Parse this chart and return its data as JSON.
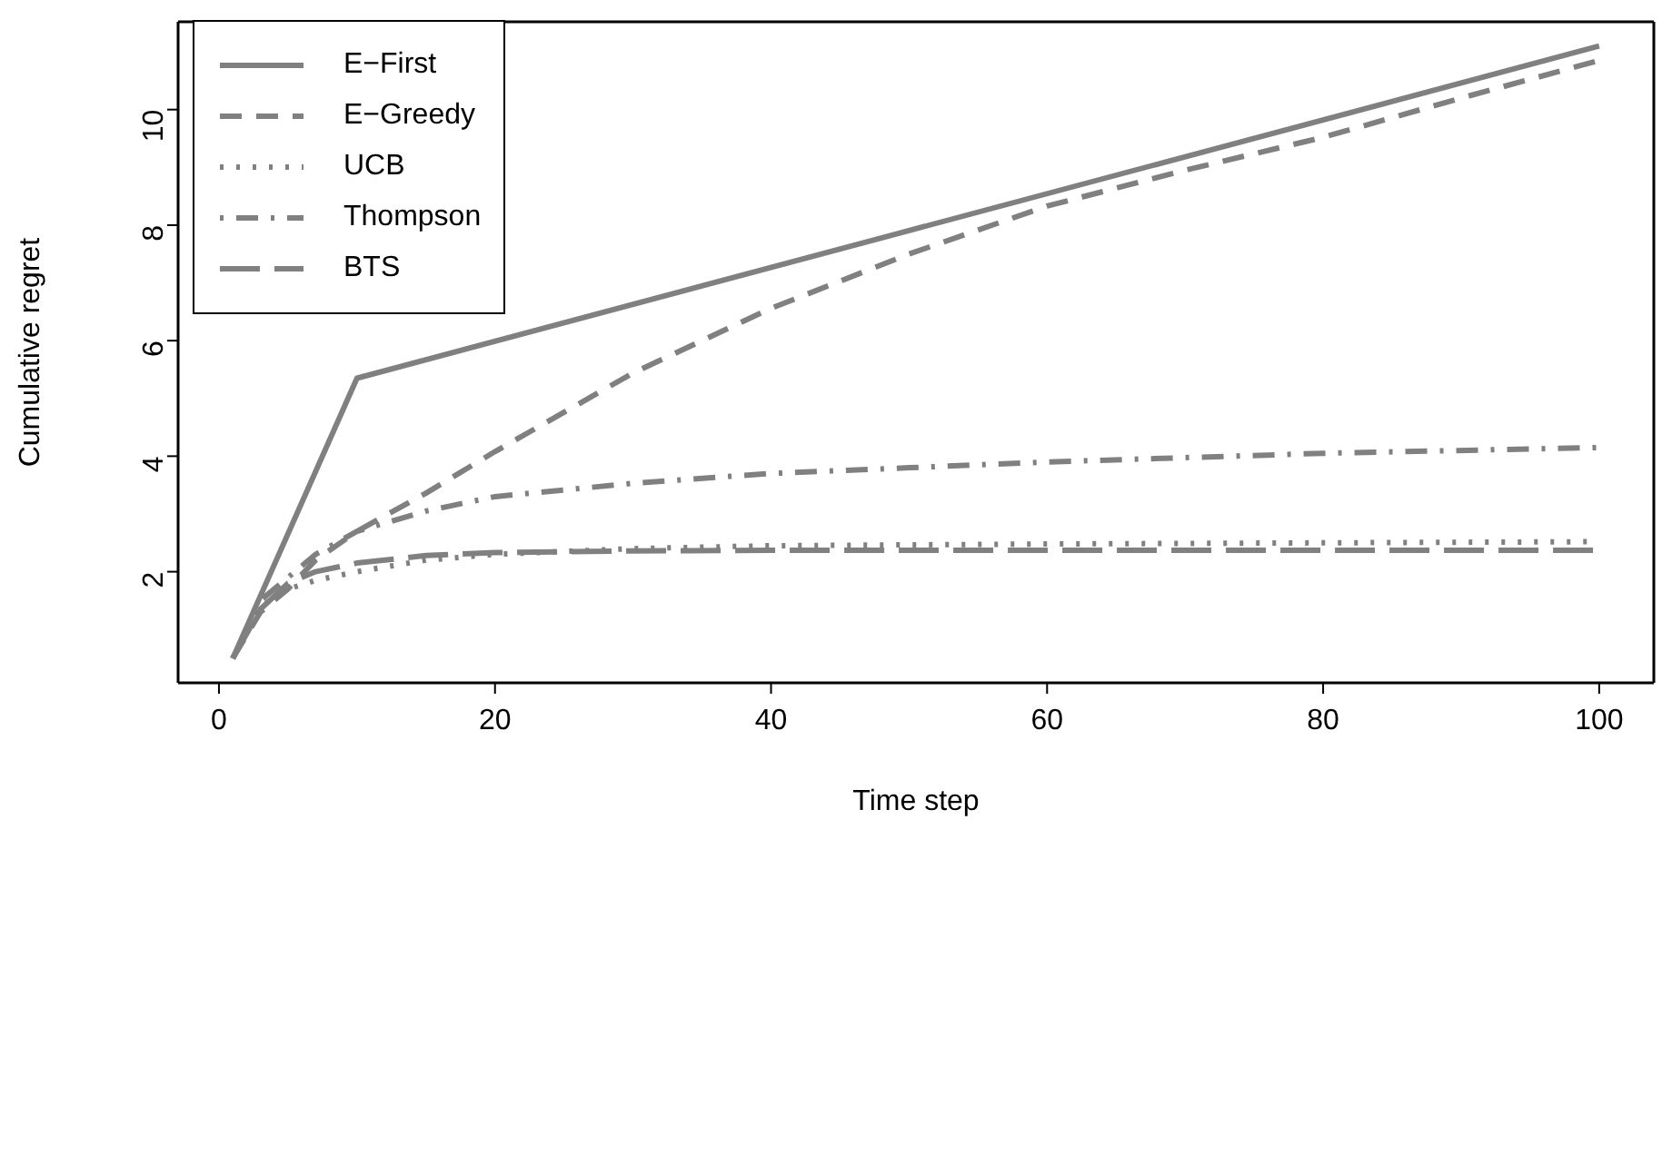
{
  "chart_data": {
    "type": "line",
    "xlabel": "Time step",
    "ylabel": "Cumulative regret",
    "xlim": [
      -2.96,
      103.96
    ],
    "ylim": [
      0.076,
      11.52
    ],
    "xticks": [
      0,
      20,
      40,
      60,
      80,
      100
    ],
    "yticks": [
      2,
      4,
      6,
      8,
      10
    ],
    "legend": "top left",
    "marker": "none",
    "series": [
      {
        "name": "E−First",
        "color": "#808080",
        "line_style": "solid",
        "x": [
          1,
          10,
          100
        ],
        "values": [
          0.5,
          5.35,
          11.1
        ]
      },
      {
        "name": "E−Greedy",
        "color": "#808080",
        "line_style": "dashed",
        "x": [
          1,
          3,
          5,
          7,
          10,
          15,
          20,
          30,
          40,
          50,
          60,
          70,
          80,
          90,
          100
        ],
        "values": [
          0.5,
          1.3,
          1.7,
          2.2,
          2.7,
          3.36,
          4.08,
          5.44,
          6.56,
          7.5,
          8.33,
          8.95,
          9.52,
          10.2,
          10.85
        ]
      },
      {
        "name": "UCB",
        "color": "#808080",
        "line_style": "dotted",
        "x": [
          1,
          3,
          5,
          7,
          10,
          15,
          20,
          30,
          40,
          60,
          80,
          100
        ],
        "values": [
          0.5,
          1.4,
          1.7,
          1.85,
          2.0,
          2.2,
          2.3,
          2.4,
          2.45,
          2.48,
          2.5,
          2.52
        ]
      },
      {
        "name": "Thompson",
        "color": "#808080",
        "line_style": "dashdot",
        "x": [
          1,
          3,
          5,
          7,
          10,
          15,
          20,
          30,
          40,
          50,
          60,
          80,
          100
        ],
        "values": [
          0.5,
          1.5,
          1.9,
          2.3,
          2.7,
          3.05,
          3.3,
          3.53,
          3.7,
          3.8,
          3.9,
          4.05,
          4.15
        ]
      },
      {
        "name": "BTS",
        "color": "#808080",
        "line_style": "longdash",
        "x": [
          1,
          3,
          5,
          7,
          10,
          15,
          20,
          30,
          40,
          60,
          80,
          100
        ],
        "values": [
          0.5,
          1.35,
          1.8,
          2.0,
          2.15,
          2.28,
          2.33,
          2.36,
          2.37,
          2.37,
          2.37,
          2.37
        ]
      }
    ]
  }
}
